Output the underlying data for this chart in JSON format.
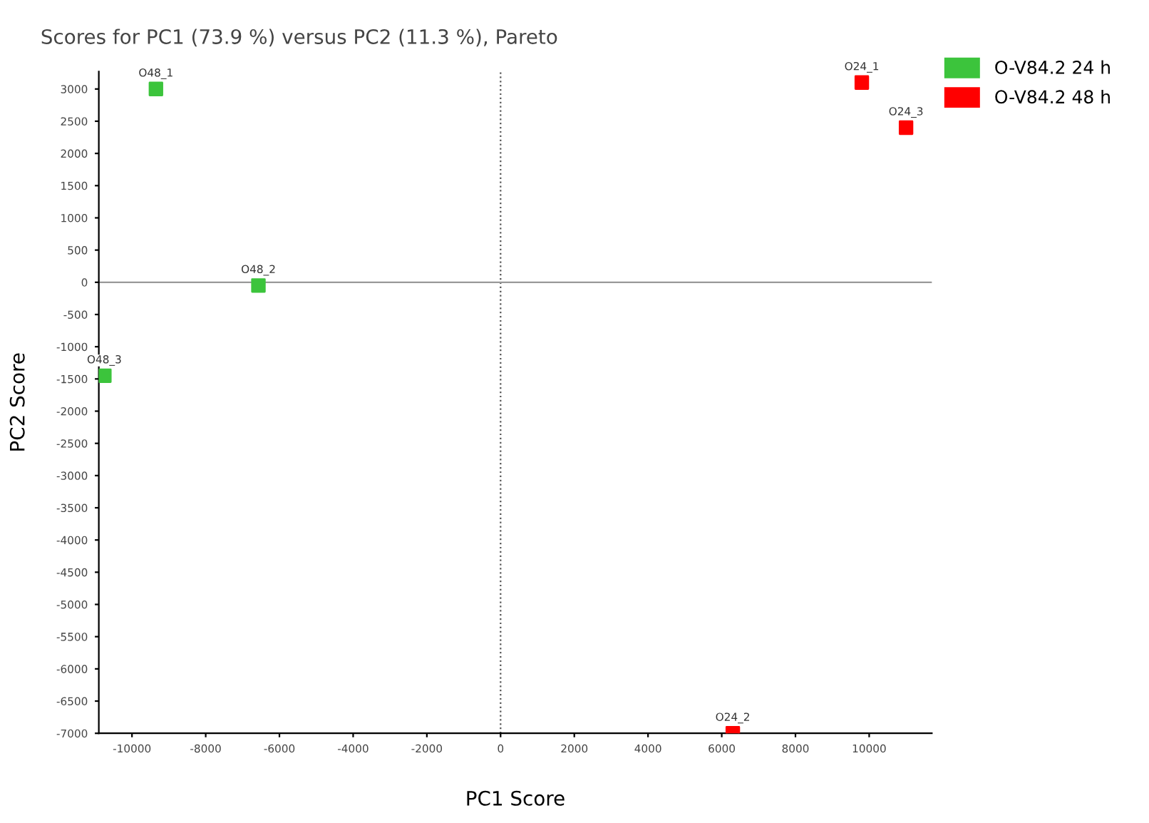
{
  "chart_data": {
    "type": "scatter",
    "title": "Scores for PC1 (73.9 %) versus PC2 (11.3 %), Pareto",
    "xlabel": "PC1 Score",
    "ylabel": "PC2 Score",
    "series": [
      {
        "name": "O-V84.2 24 h",
        "color": "#3cc43c",
        "x": [
          -9350,
          -6570,
          -10750
        ],
        "values": [
          3000,
          -50,
          -1450
        ]
      },
      {
        "name": "O-V84.2 48 h",
        "color": "#ff0000",
        "x": [
          9800,
          6300,
          11000
        ],
        "values": [
          3100,
          -7000,
          2400
        ]
      }
    ],
    "annotations": [
      {
        "text": "O48_1",
        "x": -9350,
        "y": 3000
      },
      {
        "text": "O48_2",
        "x": -6570,
        "y": -50
      },
      {
        "text": "O48_3",
        "x": -10750,
        "y": -1450
      },
      {
        "text": "O24_1",
        "x": 9800,
        "y": 3100
      },
      {
        "text": "O24_2",
        "x": 6300,
        "y": -7000
      },
      {
        "text": "O24_3",
        "x": 11000,
        "y": 2400
      }
    ],
    "xlim": [
      -10900,
      11700
    ],
    "ylim": [
      -7000,
      3270
    ],
    "xticks": [
      -10000,
      -8000,
      -6000,
      -4000,
      -2000,
      0,
      2000,
      4000,
      6000,
      8000,
      10000
    ],
    "yticks": [
      -7000,
      -6500,
      -6000,
      -5500,
      -5000,
      -4500,
      -4000,
      -3500,
      -3000,
      -2500,
      -2000,
      -1500,
      -1000,
      -500,
      0,
      500,
      1000,
      1500,
      2000,
      2500,
      3000
    ],
    "ref_lines": [
      {
        "axis": "x",
        "value": 0,
        "color": "#555555",
        "line_style": "dotted"
      },
      {
        "axis": "y",
        "value": 0,
        "color": "#999999",
        "line_style": "solid"
      }
    ],
    "marker": "square",
    "legend": "top right",
    "grid": false
  }
}
